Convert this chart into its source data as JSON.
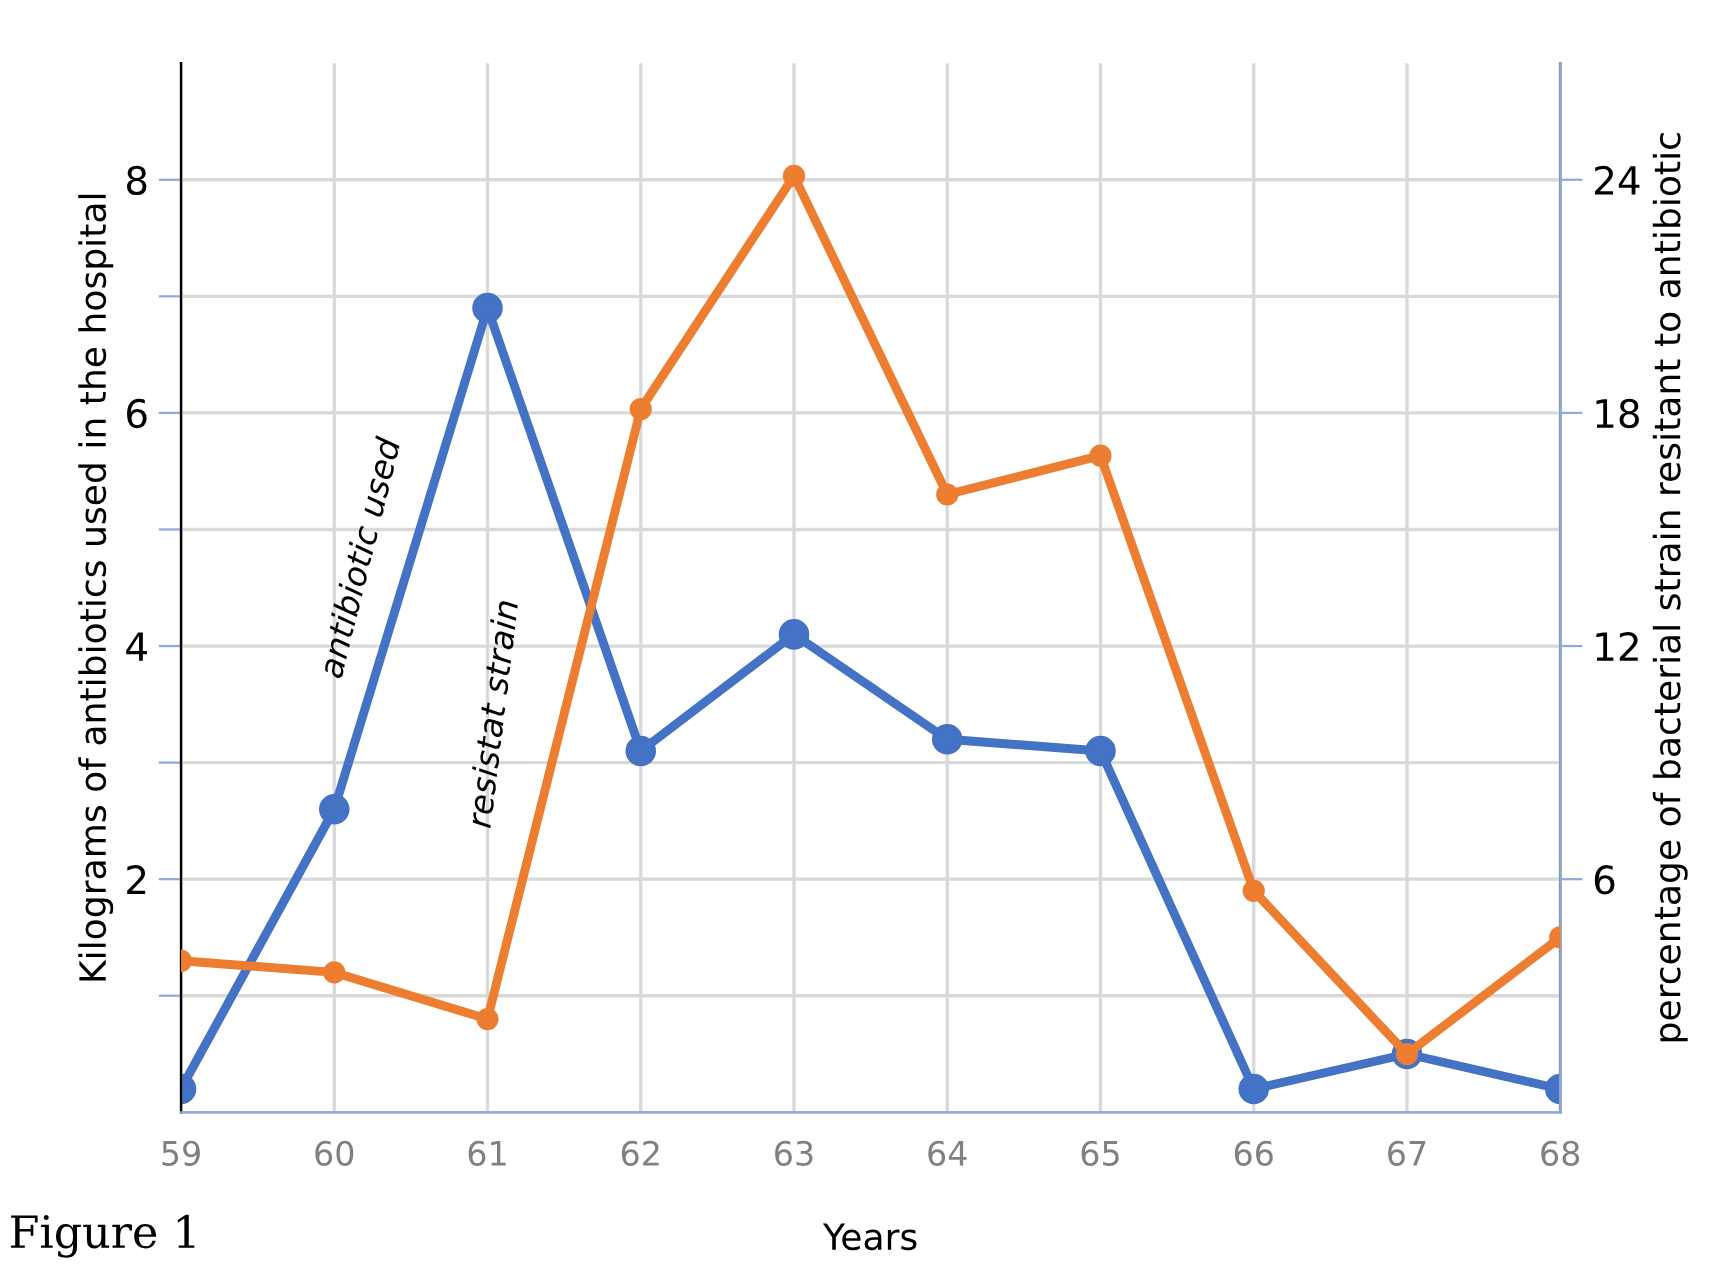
{
  "chart_data": {
    "type": "line",
    "xlabel": "Years",
    "ylabel": "Kilograms of antibiotics used in the hospital",
    "y2label": "percentage of bacterial strain resitant to antibiotic",
    "categories": [
      "59",
      "60",
      "61",
      "62",
      "63",
      "64",
      "65",
      "66",
      "67",
      "68"
    ],
    "series": [
      {
        "name": "antibiotic used",
        "color": "#4472c4",
        "values": [
          0.2,
          2.6,
          6.9,
          3.1,
          4.1,
          3.2,
          3.1,
          0.2,
          0.5,
          0.2
        ]
      },
      {
        "name": "resistat strain",
        "color": "#ed7d31",
        "axis": "y2",
        "values": [
          3.9,
          3.6,
          2.4,
          18.1,
          24.1,
          15.9,
          16.9,
          5.7,
          1.5,
          4.5
        ]
      }
    ],
    "ylim": [
      0,
      9
    ],
    "yticks": [
      {
        "value": 1,
        "label": null
      },
      2,
      {
        "value": 3,
        "label": null
      },
      4,
      {
        "value": 5,
        "label": null
      },
      6,
      {
        "value": 7,
        "label": null
      },
      8
    ],
    "y2lim": [
      0,
      27
    ],
    "y2ticks": [
      6,
      12,
      18,
      24
    ],
    "grid": true,
    "marker": "circle",
    "line_style": "solid",
    "legend": false,
    "annotations": [
      "Figure 1"
    ]
  }
}
